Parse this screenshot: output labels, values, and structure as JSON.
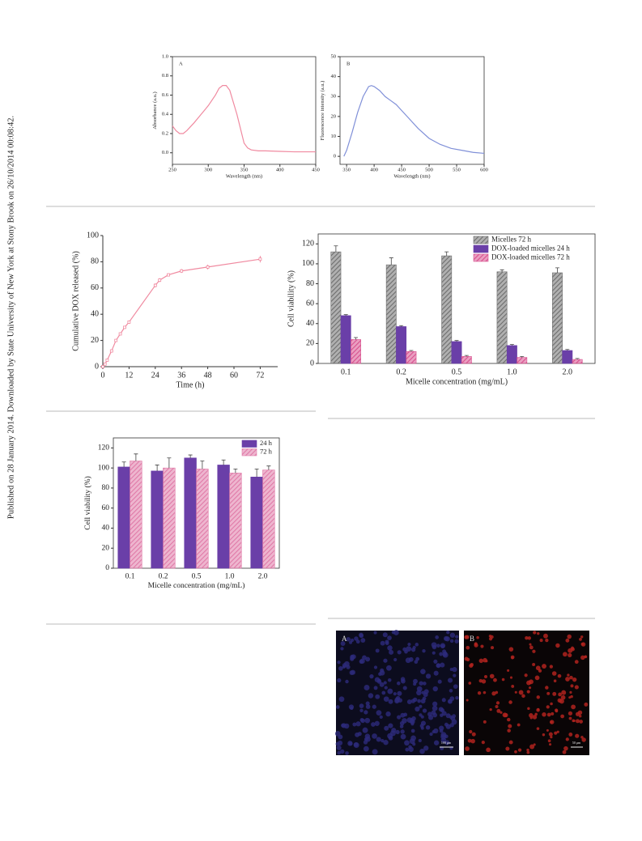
{
  "side_note": "Published on 28 January 2014. Downloaded by State University of New York at Stony Brook on 26/10/2014 00:08:42.",
  "chart_data": [
    {
      "type": "line",
      "label": "A",
      "xlabel": "Wavelength (nm)",
      "ylabel": "Absorbance (a.u.)",
      "frame": true,
      "color": "#f08aa0",
      "x": [
        250,
        255,
        260,
        265,
        270,
        280,
        290,
        300,
        310,
        315,
        320,
        325,
        330,
        340,
        350,
        355,
        360,
        370,
        380,
        400,
        420,
        450
      ],
      "values": [
        0.28,
        0.23,
        0.2,
        0.2,
        0.23,
        0.31,
        0.4,
        0.49,
        0.6,
        0.67,
        0.7,
        0.7,
        0.65,
        0.4,
        0.1,
        0.05,
        0.03,
        0.02,
        0.02,
        0.015,
        0.01,
        0.01
      ],
      "xlim": [
        250,
        450
      ],
      "xticks": [
        250,
        300,
        350,
        400,
        450
      ],
      "ylim": [
        -0.12,
        1.0
      ],
      "yticks": [
        {
          "value": 0,
          "label": "0.0"
        },
        0.2,
        0.4,
        0.6,
        0.8,
        {
          "value": 1,
          "label": "1.0"
        }
      ]
    },
    {
      "type": "line",
      "label": "B",
      "xlabel": "Wavelength (nm)",
      "ylabel": "Fluorescence intensity (a.u.)",
      "frame": true,
      "color": "#8090d8",
      "x": [
        345,
        350,
        360,
        370,
        380,
        390,
        395,
        400,
        410,
        420,
        430,
        440,
        450,
        460,
        480,
        500,
        520,
        540,
        560,
        580,
        600
      ],
      "values": [
        0,
        3,
        12,
        22,
        30,
        35,
        35.5,
        35,
        33,
        30,
        28,
        26,
        23,
        20,
        14,
        9,
        6,
        4,
        3,
        2,
        1.5
      ],
      "xlim": [
        338,
        600
      ],
      "xticks": [
        350,
        400,
        450,
        500,
        550,
        600
      ],
      "ylim": [
        -4,
        50
      ],
      "yticks": [
        0,
        10,
        20,
        30,
        40,
        50
      ]
    },
    {
      "type": "line",
      "xlabel": "Time (h)",
      "ylabel": "Cumulative DOX released (%)",
      "frame": false,
      "color": "#f08aa0",
      "markers": true,
      "x": [
        0,
        1,
        2,
        4,
        6,
        8,
        10,
        12,
        24,
        26,
        30,
        36,
        48,
        72
      ],
      "values": [
        0,
        2,
        5,
        12,
        20,
        25,
        30,
        34,
        62,
        66,
        70,
        73,
        76,
        82
      ],
      "errors": [
        0,
        0.5,
        0.8,
        1,
        1,
        1,
        1,
        1.2,
        1.5,
        1.5,
        1.2,
        1.5,
        1.8,
        2.5
      ],
      "xlim": [
        0,
        80
      ],
      "xticks": [
        0,
        12,
        24,
        36,
        48,
        60,
        72
      ],
      "ylim": [
        0,
        100
      ],
      "yticks": [
        0,
        20,
        40,
        60,
        80,
        100
      ]
    },
    {
      "type": "bar",
      "xlabel": "Micelle concentration (mg/mL)",
      "ylabel": "Cell viability (%)",
      "frame": true,
      "legend": "upper right",
      "categories": [
        "0.1",
        "0.2",
        "0.5",
        "1.0",
        "2.0"
      ],
      "series": [
        {
          "name": "Micelles 72 h",
          "color": "#6e6e6e",
          "hatch": true,
          "values": [
            112,
            99,
            108,
            92,
            91
          ],
          "errors": [
            6,
            7,
            4,
            2,
            5
          ]
        },
        {
          "name": "DOX-loaded micelles 24 h",
          "color": "#6a3fa8",
          "hatch": false,
          "values": [
            48,
            37,
            22,
            18,
            13
          ],
          "errors": [
            1,
            1,
            1,
            1,
            1
          ]
        },
        {
          "name": "DOX-loaded micelles 72 h",
          "color": "#d8508e",
          "hatch": true,
          "values": [
            24,
            12,
            7,
            6,
            4
          ],
          "errors": [
            2,
            1,
            1,
            1,
            1
          ]
        }
      ],
      "ylim": [
        0,
        130
      ],
      "yticks": [
        0,
        20,
        40,
        60,
        80,
        100,
        120
      ]
    },
    {
      "type": "bar",
      "xlabel": "Micelle concentration (mg/mL)",
      "ylabel": "Cell viability (%)",
      "frame": true,
      "legend": "upper right",
      "categories": [
        "0.1",
        "0.2",
        "0.5",
        "1.0",
        "2.0"
      ],
      "series": [
        {
          "name": "24 h",
          "color": "#6a3fa8",
          "hatch": false,
          "values": [
            101,
            97,
            110,
            103,
            91
          ],
          "errors": [
            5,
            6,
            3,
            5,
            8
          ]
        },
        {
          "name": "72 h",
          "color": "#e07aa8",
          "hatch": true,
          "values": [
            107,
            100,
            99,
            95,
            98
          ],
          "errors": [
            7,
            10,
            8,
            4,
            4
          ]
        }
      ],
      "ylim": [
        0,
        130
      ],
      "yticks": [
        0,
        20,
        40,
        60,
        80,
        100,
        120
      ]
    }
  ],
  "images": [
    {
      "label": "A",
      "scale": "100 μm"
    },
    {
      "label": "B",
      "scale": "50 μm"
    }
  ]
}
